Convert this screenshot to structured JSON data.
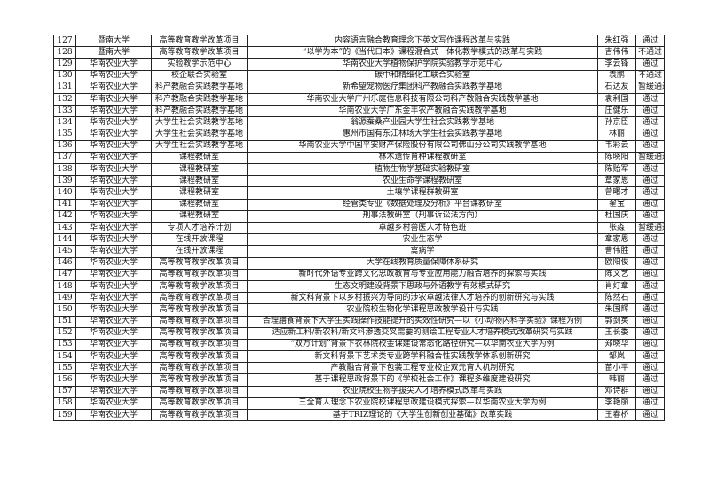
{
  "table": {
    "rows": [
      [
        "127",
        "暨南大学",
        "高等教育教学改革项目",
        "内容语言融合教育理念下英文写作课程改革与实践",
        "朱红强",
        "通过"
      ],
      [
        "128",
        "暨南大学",
        "高等教育教学改革项目",
        "“以学为本”的《当代日本》课程混合式一体化教学模式的改革与实践",
        "吉伟伟",
        "不通过"
      ],
      [
        "129",
        "华南农业大学",
        "实验教学示范中心",
        "华南农业大学植物保护学院实验教学示范中心",
        "李云锋",
        "通过"
      ],
      [
        "130",
        "华南农业大学",
        "校企联合实验室",
        "碳中和精细化工联合实验室",
        "袁鹏",
        "不通过"
      ],
      [
        "131",
        "华南农业大学",
        "科产教融合实践教学基地",
        "新希望宠物医疗集团科产教融合实践教学基地",
        "石达友",
        "暂缓通过"
      ],
      [
        "132",
        "华南农业大学",
        "科产教融合实践教学基地",
        "华南农业大学广州乐庭信息科技有限公司科产教融合实践教学基地",
        "袁利国",
        "通过"
      ],
      [
        "133",
        "华南农业大学",
        "科产教融合实践教学基地",
        "华南农业大学广东金丰农产教融合实践教学基地",
        "庄健乐",
        "通过"
      ],
      [
        "134",
        "华南农业大学",
        "大学生社会实践教学基地",
        "翁源蚕桑产业园大学生社会实践教学基地",
        "孙京臣",
        "通过"
      ],
      [
        "135",
        "华南农业大学",
        "大学生社会实践教学基地",
        "惠州市国有东江林场大学生社会实践教学基地",
        "林丽",
        "通过"
      ],
      [
        "136",
        "华南农业大学",
        "大学生社会实践教学基地",
        "华南农业大学中国平安财产保险股份有限公司佛山分公司实践教学基地",
        "韦彩云",
        "通过"
      ],
      [
        "137",
        "华南农业大学",
        "课程教研室",
        "林木遗传育种课程教研室",
        "陈晓阳",
        "暂缓通过"
      ],
      [
        "138",
        "华南农业大学",
        "课程教研室",
        "植物生物学基础实验教研室",
        "陈贻军",
        "通过"
      ],
      [
        "139",
        "华南农业大学",
        "课程教研室",
        "农业生命学课程教研室",
        "章家恩",
        "通过"
      ],
      [
        "140",
        "华南农业大学",
        "课程教研室",
        "土壤学课程群教研室",
        "曾曙才",
        "通过"
      ],
      [
        "141",
        "华南农业大学",
        "课程教研室",
        "经管类专业《数据处理及分析》平台课教研室",
        "翟宝",
        "通过"
      ],
      [
        "142",
        "华南农业大学",
        "课程教研室",
        "刑事法教研室（刑事诉讼法方向）",
        "杜国庆",
        "通过"
      ],
      [
        "143",
        "华南农业大学",
        "专项人才培养计划",
        "卓越乡村兽医人才特色班",
        "张淼",
        "暂缓通过"
      ],
      [
        "144",
        "华南农业大学",
        "在线开放课程",
        "农业生态学",
        "章家恩",
        "通过"
      ],
      [
        "145",
        "华南农业大学",
        "在线开放课程",
        "禽病学",
        "曹伟胜",
        "通过"
      ],
      [
        "146",
        "华南农业大学",
        "高等教育教学改革项目",
        "大学在线教育质量保障体系研究",
        "欧阳俊",
        "通过"
      ],
      [
        "147",
        "华南农业大学",
        "高等教育教学改革项目",
        "新时代外语专业跨文化思政教育与专业应用能力融合培养的探索与实践",
        "陈文艺",
        "通过"
      ],
      [
        "148",
        "华南农业大学",
        "高等教育教学改革项目",
        "生态文明建设背景下思政与外语教学有效模式研究",
        "肖灯章",
        "通过"
      ],
      [
        "149",
        "华南农业大学",
        "高等教育教学改革项目",
        "新文科背景下以乡村振兴为导向的涉农卓越法律人才培养的创新研究与实践",
        "陈然石",
        "通过"
      ],
      [
        "150",
        "华南农业大学",
        "高等教育教学改革项目",
        "农业院校生物化学课程思政教学设计与实践",
        "朱国辉",
        "通过"
      ],
      [
        "151",
        "华南农业大学",
        "高等教育教学改革项目",
        "合理膳食背景下大学生实践操作技能提升的实效性研究—以《小动物内科学实验》课程为例",
        "郭剑英",
        "通过"
      ],
      [
        "152",
        "华南农业大学",
        "高等教育教学改革项目",
        "适应新工科/新农科/新文科渗透交叉需要的测绘工程专业人才培养模式改革研究与实践",
        "王长委",
        "通过"
      ],
      [
        "153",
        "华南农业大学",
        "高等教育教学改革项目",
        "“双万计划”背景下农林院校金课建设常态化路径研究—以华南农业大学为例",
        "郑晓华",
        "通过"
      ],
      [
        "154",
        "华南农业大学",
        "高等教育教学改革项目",
        "新文科背景下艺术类专业跨学科融合性实践教学体系创新研究",
        "邹岚",
        "通过"
      ],
      [
        "155",
        "华南农业大学",
        "高等教育教学改革项目",
        "产教融合背景下包装工程专业校企双元育人机制研究",
        "苗小平",
        "通过"
      ],
      [
        "156",
        "华南农业大学",
        "高等教育教学改革项目",
        "基于课程思政背景下的《学校社会工作》课程多维度建设研究",
        "韩丽",
        "通过"
      ],
      [
        "157",
        "华南农业大学",
        "高等教育教学改革项目",
        "农业院校生物学拔尖人才培养模式改革与实践",
        "邓诗群",
        "通过"
      ],
      [
        "158",
        "华南农业大学",
        "高等教育教学改革项目",
        "三全育人理念下农业院校课程思政建设模式探索—以华南农业大学为例",
        "李艳丽",
        "通过"
      ],
      [
        "159",
        "华南农业大学",
        "高等教育教学改革项目",
        "基于TRIZ理论的《大学生创新创业基础》改革实践",
        "王春桥",
        "通过"
      ]
    ]
  }
}
